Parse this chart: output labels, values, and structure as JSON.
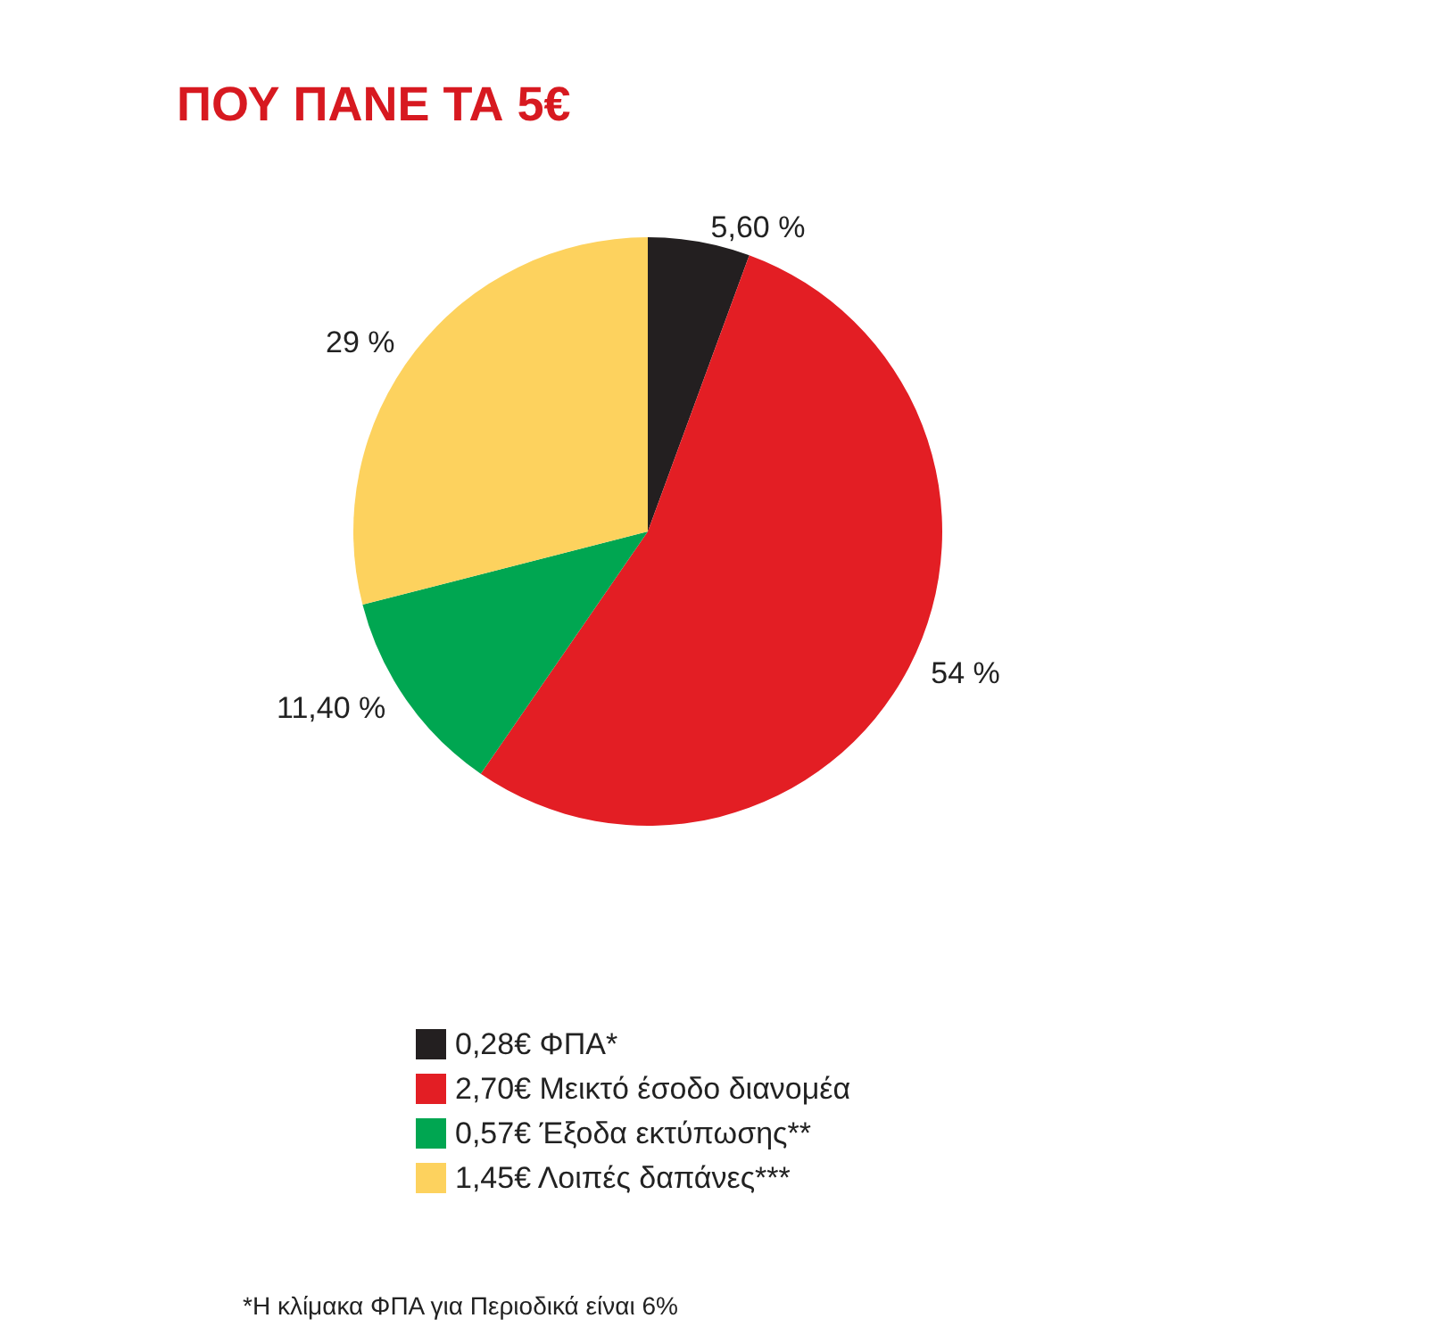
{
  "chart_data": {
    "type": "pie",
    "title": "ΠΟΥ ΠΑΝΕ ΤΑ 5€",
    "categories": [
      "0,28€ ΦΠΑ*",
      "2,70€ Μεικτό έσοδο διανομέα",
      "0,57€ Έξοδα εκτύπωσης**",
      "1,45€ Λοιπές δαπάνες***"
    ],
    "values": [
      5.6,
      54,
      11.4,
      29
    ],
    "value_labels": [
      "5,60 %",
      "54 %",
      "11,40 %",
      "29 %"
    ],
    "colors": [
      "#231f20",
      "#e31e24",
      "#00a651",
      "#fdd25e"
    ],
    "legend": "bottom",
    "annotations": [
      "*Η κλίμακα ΦΠΑ για Περιοδικά είναι 6%"
    ]
  }
}
